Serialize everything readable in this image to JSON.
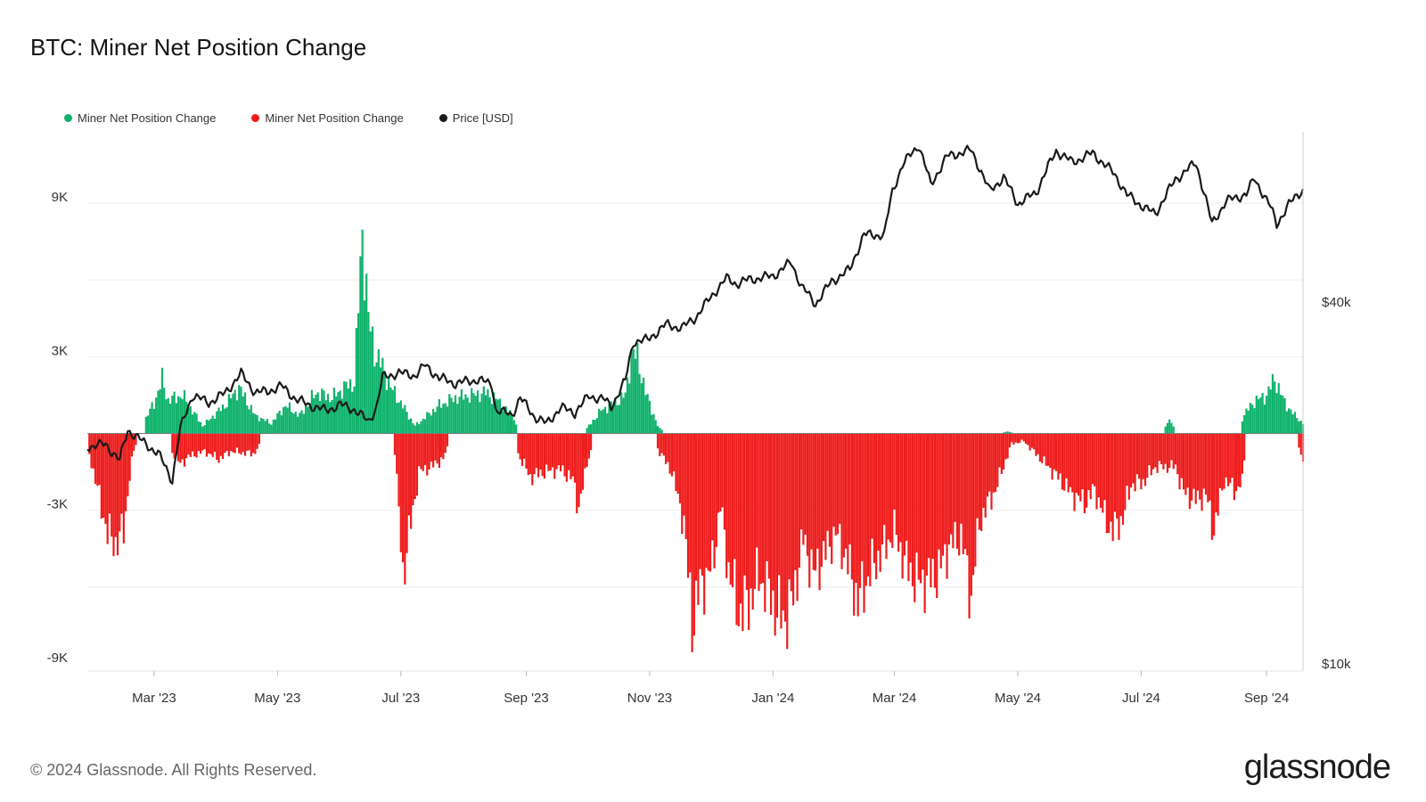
{
  "header": {
    "title": "BTC: Miner Net Position Change"
  },
  "legend": [
    {
      "label": "Miner Net Position Change",
      "color": "#10b26c"
    },
    {
      "label": "Miner Net Position Change",
      "color": "#ee1c1c"
    },
    {
      "label": "Price [USD]",
      "color": "#1a1a1a"
    }
  ],
  "footer": {
    "copyright": "© 2024 Glassnode. All Rights Reserved.",
    "logo": "glassnode"
  },
  "chart_data": {
    "type": "bar",
    "title": "BTC: Miner Net Position Change",
    "x_start": "2023-01-27",
    "x_end": "2024-09-19",
    "x_ticks": [
      {
        "label": "Mar '23",
        "date": "2023-03-01"
      },
      {
        "label": "May '23",
        "date": "2023-05-01"
      },
      {
        "label": "Jul '23",
        "date": "2023-07-01"
      },
      {
        "label": "Sep '23",
        "date": "2023-09-01"
      },
      {
        "label": "Nov '23",
        "date": "2023-11-01"
      },
      {
        "label": "Jan '24",
        "date": "2024-01-01"
      },
      {
        "label": "Mar '24",
        "date": "2024-03-01"
      },
      {
        "label": "May '24",
        "date": "2024-05-01"
      },
      {
        "label": "Jul '24",
        "date": "2024-07-01"
      },
      {
        "label": "Sep '24",
        "date": "2024-09-01"
      }
    ],
    "y_left": {
      "ticks": [
        9000,
        3000,
        -3000,
        -9000
      ],
      "tick_labels": [
        "9K",
        "3K",
        "-3K",
        "-9K"
      ],
      "ylim": [
        -9000,
        9000
      ]
    },
    "y_right": {
      "scale": "log",
      "ticks": [
        40000,
        10000
      ],
      "tick_labels": [
        "$40k",
        "$10k"
      ]
    },
    "grid": true,
    "legend_position": "top-left",
    "series": [
      {
        "name": "Miner Net Position Change",
        "color": "#10b26c",
        "sign": "positive",
        "points": [
          [
            "2023-02-25",
            600
          ],
          [
            "2023-03-01",
            1200
          ],
          [
            "2023-03-05",
            2100
          ],
          [
            "2023-03-08",
            1300
          ],
          [
            "2023-03-15",
            1500
          ],
          [
            "2023-03-20",
            900
          ],
          [
            "2023-03-25",
            300
          ],
          [
            "2023-04-05",
            1100
          ],
          [
            "2023-04-12",
            1800
          ],
          [
            "2023-04-20",
            700
          ],
          [
            "2023-04-28",
            400
          ],
          [
            "2023-05-05",
            1100
          ],
          [
            "2023-05-12",
            700
          ],
          [
            "2023-05-20",
            1600
          ],
          [
            "2023-05-28",
            1400
          ],
          [
            "2023-06-03",
            1800
          ],
          [
            "2023-06-08",
            2000
          ],
          [
            "2023-06-12",
            7900
          ],
          [
            "2023-06-15",
            4500
          ],
          [
            "2023-06-18",
            3200
          ],
          [
            "2023-06-22",
            2600
          ],
          [
            "2023-06-26",
            1800
          ],
          [
            "2023-07-01",
            1200
          ],
          [
            "2023-07-08",
            300
          ],
          [
            "2023-07-20",
            1100
          ],
          [
            "2023-07-28",
            1400
          ],
          [
            "2023-08-05",
            1500
          ],
          [
            "2023-08-12",
            1600
          ],
          [
            "2023-08-18",
            1300
          ],
          [
            "2023-08-25",
            700
          ],
          [
            "2023-10-01",
            200
          ],
          [
            "2023-10-08",
            900
          ],
          [
            "2023-10-15",
            1200
          ],
          [
            "2023-10-20",
            1500
          ],
          [
            "2023-10-23",
            3100
          ],
          [
            "2023-10-26",
            3000
          ],
          [
            "2023-10-30",
            1600
          ],
          [
            "2023-11-05",
            300
          ],
          [
            "2024-04-26",
            80
          ],
          [
            "2024-07-15",
            550
          ],
          [
            "2024-08-20",
            600
          ],
          [
            "2024-08-25",
            1200
          ],
          [
            "2024-09-01",
            1500
          ],
          [
            "2024-09-05",
            2150
          ],
          [
            "2024-09-10",
            1200
          ],
          [
            "2024-09-15",
            700
          ],
          [
            "2024-09-18",
            500
          ]
        ]
      },
      {
        "name": "Miner Net Position Change",
        "color": "#ee1c1c",
        "sign": "negative",
        "points": [
          [
            "2023-01-28",
            -800
          ],
          [
            "2023-02-02",
            -2500
          ],
          [
            "2023-02-06",
            -3900
          ],
          [
            "2023-02-10",
            -4300
          ],
          [
            "2023-02-14",
            -3800
          ],
          [
            "2023-02-18",
            -900
          ],
          [
            "2023-03-10",
            -700
          ],
          [
            "2023-03-14",
            -1200
          ],
          [
            "2023-03-18",
            -900
          ],
          [
            "2023-03-26",
            -700
          ],
          [
            "2023-04-02",
            -1000
          ],
          [
            "2023-04-08",
            -700
          ],
          [
            "2023-04-20",
            -800
          ],
          [
            "2023-06-28",
            -700
          ],
          [
            "2023-07-02",
            -5500
          ],
          [
            "2023-07-06",
            -3500
          ],
          [
            "2023-07-10",
            -1500
          ],
          [
            "2023-07-16",
            -1300
          ],
          [
            "2023-07-22",
            -1000
          ],
          [
            "2023-08-28",
            -800
          ],
          [
            "2023-09-03",
            -1700
          ],
          [
            "2023-09-10",
            -1500
          ],
          [
            "2023-09-18",
            -1400
          ],
          [
            "2023-09-24",
            -1800
          ],
          [
            "2023-09-27",
            -2900
          ],
          [
            "2023-10-01",
            -1300
          ],
          [
            "2023-11-05",
            -600
          ],
          [
            "2023-11-12",
            -1500
          ],
          [
            "2023-11-18",
            -3500
          ],
          [
            "2023-11-22",
            -7400
          ],
          [
            "2023-11-26",
            -6000
          ],
          [
            "2023-12-02",
            -5200
          ],
          [
            "2023-12-06",
            -2800
          ],
          [
            "2023-12-10",
            -5300
          ],
          [
            "2023-12-15",
            -7000
          ],
          [
            "2023-12-20",
            -6600
          ],
          [
            "2023-12-25",
            -5600
          ],
          [
            "2023-12-30",
            -6200
          ],
          [
            "2024-01-03",
            -7000
          ],
          [
            "2024-01-07",
            -7200
          ],
          [
            "2024-01-11",
            -6400
          ],
          [
            "2024-01-16",
            -4100
          ],
          [
            "2024-01-21",
            -5500
          ],
          [
            "2024-01-26",
            -4800
          ],
          [
            "2024-02-01",
            -3900
          ],
          [
            "2024-02-06",
            -4800
          ],
          [
            "2024-02-12",
            -6600
          ],
          [
            "2024-02-18",
            -5400
          ],
          [
            "2024-02-24",
            -4600
          ],
          [
            "2024-03-01",
            -3800
          ],
          [
            "2024-03-06",
            -5000
          ],
          [
            "2024-03-12",
            -5800
          ],
          [
            "2024-03-18",
            -5700
          ],
          [
            "2024-03-23",
            -5400
          ],
          [
            "2024-03-28",
            -4400
          ],
          [
            "2024-04-03",
            -4000
          ],
          [
            "2024-04-08",
            -6400
          ],
          [
            "2024-04-12",
            -3500
          ],
          [
            "2024-04-16",
            -2800
          ],
          [
            "2024-04-20",
            -2200
          ],
          [
            "2024-04-23",
            -1500
          ],
          [
            "2024-04-28",
            -400
          ],
          [
            "2024-05-04",
            -300
          ],
          [
            "2024-05-10",
            -800
          ],
          [
            "2024-05-16",
            -1300
          ],
          [
            "2024-05-22",
            -1800
          ],
          [
            "2024-05-28",
            -2400
          ],
          [
            "2024-06-03",
            -2700
          ],
          [
            "2024-06-08",
            -2200
          ],
          [
            "2024-06-13",
            -3300
          ],
          [
            "2024-06-17",
            -3800
          ],
          [
            "2024-06-22",
            -3300
          ],
          [
            "2024-06-26",
            -2000
          ],
          [
            "2024-07-02",
            -1900
          ],
          [
            "2024-07-08",
            -1300
          ],
          [
            "2024-07-18",
            -1300
          ],
          [
            "2024-07-22",
            -2300
          ],
          [
            "2024-07-28",
            -2600
          ],
          [
            "2024-08-02",
            -2400
          ],
          [
            "2024-08-06",
            -3800
          ],
          [
            "2024-08-11",
            -1800
          ],
          [
            "2024-08-16",
            -2200
          ],
          [
            "2024-08-19",
            -2100
          ],
          [
            "2024-09-19",
            -1100
          ]
        ]
      },
      {
        "name": "Price [USD]",
        "color": "#1a1a1a",
        "axis": "right",
        "points": [
          [
            "2023-01-27",
            23000
          ],
          [
            "2023-02-05",
            23200
          ],
          [
            "2023-02-12",
            21800
          ],
          [
            "2023-02-16",
            24500
          ],
          [
            "2023-02-25",
            23200
          ],
          [
            "2023-03-03",
            22400
          ],
          [
            "2023-03-10",
            20200
          ],
          [
            "2023-03-14",
            24600
          ],
          [
            "2023-03-20",
            28000
          ],
          [
            "2023-03-28",
            27200
          ],
          [
            "2023-04-05",
            28200
          ],
          [
            "2023-04-13",
            30400
          ],
          [
            "2023-04-20",
            28300
          ],
          [
            "2023-04-26",
            28400
          ],
          [
            "2023-05-03",
            29000
          ],
          [
            "2023-05-10",
            27600
          ],
          [
            "2023-05-16",
            27000
          ],
          [
            "2023-05-25",
            26400
          ],
          [
            "2023-06-01",
            27000
          ],
          [
            "2023-06-08",
            26500
          ],
          [
            "2023-06-15",
            25300
          ],
          [
            "2023-06-19",
            26800
          ],
          [
            "2023-06-22",
            30000
          ],
          [
            "2023-06-30",
            30500
          ],
          [
            "2023-07-08",
            30200
          ],
          [
            "2023-07-13",
            31400
          ],
          [
            "2023-07-20",
            29900
          ],
          [
            "2023-07-28",
            29300
          ],
          [
            "2023-08-08",
            29700
          ],
          [
            "2023-08-15",
            29200
          ],
          [
            "2023-08-17",
            26400
          ],
          [
            "2023-08-25",
            26000
          ],
          [
            "2023-08-29",
            27700
          ],
          [
            "2023-09-05",
            25800
          ],
          [
            "2023-09-11",
            25100
          ],
          [
            "2023-09-18",
            26700
          ],
          [
            "2023-09-25",
            26200
          ],
          [
            "2023-10-02",
            27900
          ],
          [
            "2023-10-09",
            27600
          ],
          [
            "2023-10-13",
            26800
          ],
          [
            "2023-10-20",
            29600
          ],
          [
            "2023-10-24",
            34400
          ],
          [
            "2023-10-31",
            34600
          ],
          [
            "2023-11-09",
            36700
          ],
          [
            "2023-11-17",
            36200
          ],
          [
            "2023-11-24",
            37800
          ],
          [
            "2023-12-04",
            41900
          ],
          [
            "2023-12-09",
            43800
          ],
          [
            "2023-12-14",
            42900
          ],
          [
            "2023-12-20",
            43600
          ],
          [
            "2024-01-01",
            44200
          ],
          [
            "2024-01-10",
            46600
          ],
          [
            "2024-01-15",
            42500
          ],
          [
            "2024-01-22",
            39700
          ],
          [
            "2024-01-30",
            43300
          ],
          [
            "2024-02-08",
            45300
          ],
          [
            "2024-02-15",
            51800
          ],
          [
            "2024-02-25",
            51700
          ],
          [
            "2024-02-29",
            61100
          ],
          [
            "2024-03-05",
            67600
          ],
          [
            "2024-03-13",
            73100
          ],
          [
            "2024-03-19",
            62600
          ],
          [
            "2024-03-27",
            69900
          ],
          [
            "2024-04-08",
            71600
          ],
          [
            "2024-04-17",
            61200
          ],
          [
            "2024-04-24",
            64500
          ],
          [
            "2024-05-01",
            58300
          ],
          [
            "2024-05-10",
            60800
          ],
          [
            "2024-05-20",
            71400
          ],
          [
            "2024-05-28",
            68300
          ],
          [
            "2024-06-07",
            70800
          ],
          [
            "2024-06-18",
            65200
          ],
          [
            "2024-06-24",
            60300
          ],
          [
            "2024-07-04",
            57000
          ],
          [
            "2024-07-08",
            56100
          ],
          [
            "2024-07-18",
            64000
          ],
          [
            "2024-07-28",
            68200
          ],
          [
            "2024-08-05",
            53900
          ],
          [
            "2024-08-12",
            58900
          ],
          [
            "2024-08-22",
            60500
          ],
          [
            "2024-08-26",
            64200
          ],
          [
            "2024-09-03",
            57500
          ],
          [
            "2024-09-06",
            53900
          ],
          [
            "2024-09-12",
            58100
          ],
          [
            "2024-09-19",
            61700
          ]
        ]
      }
    ]
  }
}
